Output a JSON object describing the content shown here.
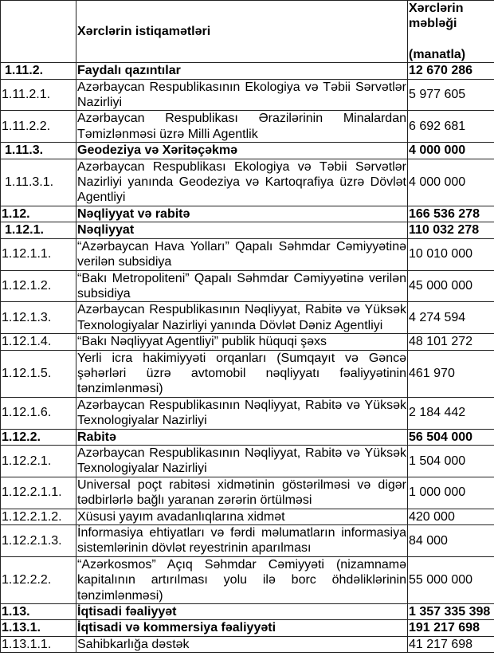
{
  "header": {
    "code": "",
    "label": "Xərclərin istiqamətləri",
    "amount_line1": "Xərclərin",
    "amount_line2": "məbləği",
    "amount_line3": "(manatla)"
  },
  "rows": [
    {
      "code": "1.11.2.",
      "label": "Faydalı qazıntılar",
      "amount": "12 670 286",
      "bold": true,
      "indent": true
    },
    {
      "code": "1.11.2.1.",
      "label": "Azərbaycan Respublikasının Ekologiya və Təbii Sərvətlər Nazirliyi",
      "amount": "5 977 605",
      "bold": false
    },
    {
      "code": "1.11.2.2.",
      "label": "Azərbaycan Respublikası Ərazilərinin Minalardan Təmizlənməsi üzrə Milli Agentlik",
      "amount": "6 692 681",
      "bold": false
    },
    {
      "code": "1.11.3.",
      "label": "Geodeziya və Xəritəçəkmə",
      "amount": "4 000 000",
      "bold": true,
      "indent": true
    },
    {
      "code": "1.11.3.1.",
      "label": "Azərbaycan Respublikası Ekologiya və Təbii Sərvətlər Nazirliyi yanında Geodeziya və Kartoqrafiya üzrə Dövlət Agentliyi",
      "amount": "4 000 000",
      "bold": false,
      "indent": true
    },
    {
      "code": "1.12.",
      "label": "Nəqliyyat və rabitə",
      "amount": "166 536 278",
      "bold": true
    },
    {
      "code": "1.12.1.",
      "label": "Nəqliyyat",
      "amount": "110 032 278",
      "bold": true,
      "indent": true
    },
    {
      "code": "1.12.1.1.",
      "label": "“Azərbaycan Hava Yolları” Qapalı Səhmdar Cəmiyyətinə verilən subsidiya",
      "amount": "10 010 000",
      "bold": false
    },
    {
      "code": "1.12.1.2.",
      "label": "“Bakı Metropoliteni” Qapalı Səhmdar Cəmiyyətinə verilən subsidiya",
      "amount": "45 000 000",
      "bold": false
    },
    {
      "code": "1.12.1.3.",
      "label": "Azərbaycan Respublikasının Nəqliyyat, Rabitə və Yüksək Texnologiyalar Nazirliyi yanında Dövlət Dəniz Agentliyi",
      "amount": "4 274 594",
      "bold": false
    },
    {
      "code": "1.12.1.4.",
      "label": "“Bakı Nəqliyyat Agentliyi” publik hüquqi şəxs",
      "amount": "48 101 272",
      "bold": false
    },
    {
      "code": "1.12.1.5.",
      "label": "Yerli icra hakimiyyəti orqanları (Sumqayıt və Gəncə şəhərləri üzrə avtomobil nəqliyyatı fəaliyyətinin tənzimlənməsi)",
      "amount": "461 970",
      "bold": false
    },
    {
      "code": "1.12.1.6.",
      "label": "Azərbaycan Respublikasının Nəqliyyat, Rabitə və Yüksək Texnologiyalar Nazirliyi",
      "amount": "2 184 442",
      "bold": false
    },
    {
      "code": "1.12.2.",
      "label": "Rabitə",
      "amount": "56 504 000",
      "bold": true
    },
    {
      "code": "1.12.2.1.",
      "label": "Azərbaycan Respublikasının Nəqliyyat, Rabitə və Yüksək Texnologiyalar Nazirliyi",
      "amount": "1 504 000",
      "bold": false
    },
    {
      "code": "1.12.2.1.1.",
      "label": "Universal poçt rabitəsi xidmətinin göstərilməsi və digər tədbirlərlə bağlı yaranan zərərin örtülməsi",
      "amount": "1 000 000",
      "bold": false
    },
    {
      "code": "1.12.2.1.2.",
      "label": "Xüsusi yayım avadanlıqlarına xidmət",
      "amount": "420 000",
      "bold": false
    },
    {
      "code": "1.12.2.1.3.",
      "label": "İnformasiya ehtiyatları və fərdi məlumatların informasiya sistemlərinin dövlət reyestrinin aparılması",
      "amount": "84 000",
      "bold": false
    },
    {
      "code": "1.12.2.2.",
      "label": "“Azərkosmos” Açıq Səhmdar Cəmiyyəti (nizamnamə kapitalının artırılması yolu ilə borc öhdəliklərinin tənzimlənməsi)",
      "amount": "55 000 000",
      "bold": false
    },
    {
      "code": "1.13.",
      "label": "İqtisadi fəaliyyət",
      "amount": "1 357 335 398",
      "bold": true
    },
    {
      "code": "1.13.1.",
      "label": "İqtisadi və kommersiya fəaliyyəti",
      "amount": "191 217 698",
      "bold": true
    },
    {
      "code": "1.13.1.1.",
      "label": "Sahibkarlığa dəstək",
      "amount": "41 217 698",
      "bold": false
    }
  ]
}
